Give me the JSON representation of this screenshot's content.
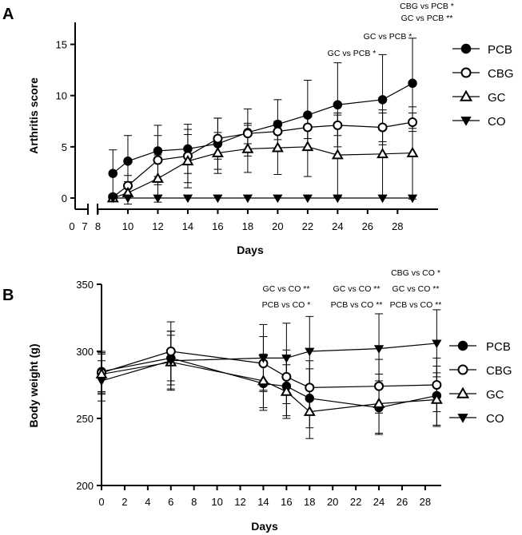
{
  "chart_data": [
    {
      "panel": "A",
      "type": "line",
      "xlabel": "Days",
      "ylabel": "Arthritis score",
      "xlim": [
        0,
        29
      ],
      "ylim": [
        -1,
        17
      ],
      "x_ticks_left": [
        0,
        7
      ],
      "x_ticks": [
        8,
        10,
        12,
        14,
        16,
        18,
        20,
        22,
        24,
        26,
        28
      ],
      "y_ticks": [
        0,
        5,
        10,
        15
      ],
      "axis_break": true,
      "grid": false,
      "legend": "right",
      "series": [
        {
          "name": "PCB",
          "marker": "filled-circle",
          "x": [
            9,
            10,
            12,
            14,
            16,
            18,
            20,
            22,
            24,
            27,
            29
          ],
          "y": [
            2.4,
            3.6,
            4.6,
            4.8,
            5.3,
            6.4,
            7.2,
            8.1,
            9.1,
            9.6,
            11.2
          ],
          "err": [
            2.3,
            2.5,
            2.5,
            2.4,
            2.5,
            2.3,
            2.4,
            3.4,
            4.1,
            4.4,
            4.4
          ]
        },
        {
          "name": "CBG",
          "marker": "open-circle",
          "x": [
            9,
            10,
            12,
            14,
            16,
            18,
            20,
            22,
            24,
            27,
            29
          ],
          "y": [
            0.1,
            1.2,
            3.7,
            4.1,
            5.8,
            6.3,
            6.5,
            6.9,
            7.1,
            6.9,
            7.4
          ],
          "err": [
            0.1,
            1.0,
            2.4,
            2.6,
            2.0,
            1.0,
            0.8,
            1.1,
            1.0,
            1.4,
            0.9
          ]
        },
        {
          "name": "GC",
          "marker": "open-triangle",
          "x": [
            9,
            10,
            12,
            14,
            16,
            18,
            20,
            22,
            24,
            27,
            29
          ],
          "y": [
            0.0,
            0.5,
            1.9,
            3.6,
            4.4,
            4.8,
            4.9,
            5.0,
            4.2,
            4.3,
            4.4
          ],
          "err": [
            0.0,
            1.1,
            2.3,
            2.6,
            2.0,
            2.3,
            2.6,
            2.9,
            4.1,
            4.3,
            4.5
          ]
        },
        {
          "name": "CO",
          "marker": "filled-triangle-down",
          "x": [
            9,
            10,
            12,
            14,
            16,
            18,
            20,
            22,
            24,
            27,
            29
          ],
          "y": [
            0,
            0,
            0,
            0,
            0,
            0,
            0,
            0,
            0,
            0,
            0
          ],
          "err": [
            0,
            0,
            0,
            0,
            0,
            0,
            0,
            0,
            0,
            0,
            0
          ]
        }
      ],
      "annotations": [
        {
          "x": 24,
          "lines": [
            "GC vs PCB *"
          ]
        },
        {
          "x": 27,
          "lines": [
            "GC vs PCB *"
          ]
        },
        {
          "x": 29,
          "lines": [
            "CBG vs PCB *",
            "GC vs PCB **"
          ]
        }
      ]
    },
    {
      "panel": "B",
      "type": "line",
      "xlabel": "Days",
      "ylabel": "Body weight (g)",
      "xlim": [
        0,
        29
      ],
      "ylim": [
        200,
        350
      ],
      "x_ticks": [
        0,
        2,
        4,
        6,
        8,
        10,
        12,
        14,
        16,
        18,
        20,
        22,
        24,
        26,
        28
      ],
      "y_ticks": [
        200,
        250,
        300,
        350
      ],
      "grid": false,
      "legend": "right",
      "series": [
        {
          "name": "PCB",
          "marker": "filled-circle",
          "x": [
            0,
            6,
            14,
            16,
            18,
            24,
            29
          ],
          "y": [
            285,
            295,
            276,
            274,
            265,
            258,
            267
          ],
          "err": [
            15,
            20,
            20,
            22,
            22,
            20,
            22
          ]
        },
        {
          "name": "CBG",
          "marker": "open-circle",
          "x": [
            0,
            6,
            14,
            16,
            18,
            24,
            29
          ],
          "y": [
            284,
            300,
            291,
            281,
            273,
            274,
            275
          ],
          "err": [
            15,
            22,
            20,
            20,
            20,
            20,
            20
          ]
        },
        {
          "name": "GC",
          "marker": "open-triangle",
          "x": [
            0,
            6,
            14,
            16,
            18,
            24,
            29
          ],
          "y": [
            283,
            292,
            278,
            270,
            255,
            261,
            264
          ],
          "err": [
            15,
            20,
            20,
            20,
            20,
            22,
            20
          ]
        },
        {
          "name": "CO",
          "marker": "filled-triangle-down",
          "x": [
            0,
            6,
            14,
            16,
            18,
            24,
            29
          ],
          "y": [
            278,
            293,
            295,
            295,
            300,
            302,
            306
          ],
          "err": [
            15,
            22,
            25,
            26,
            26,
            26,
            25
          ]
        }
      ],
      "annotations": [
        {
          "x": 18,
          "lines": [
            "GC vs CO **",
            "PCB vs CO *"
          ]
        },
        {
          "x": 24,
          "lines": [
            "GC vs CO **",
            "PCB vs CO **"
          ]
        },
        {
          "x": 29,
          "lines": [
            "CBG vs CO *",
            "GC vs CO **",
            "PCB vs CO **"
          ]
        }
      ]
    }
  ]
}
